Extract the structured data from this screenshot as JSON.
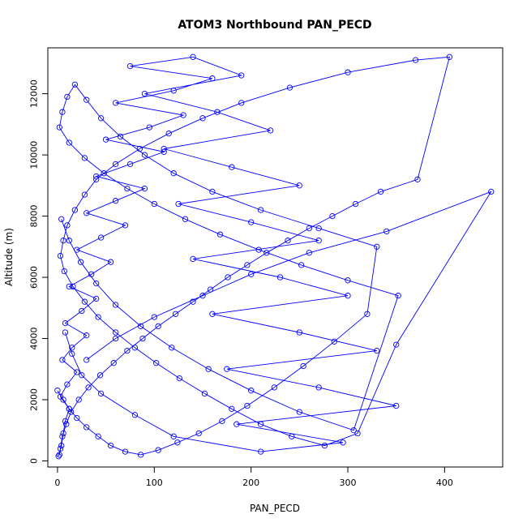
{
  "chart_data": {
    "type": "line",
    "title": "ATOM3 Northbound PAN_PECD",
    "xlabel": "PAN_PECD",
    "ylabel": "Altitude (m)",
    "xlim": [
      -10,
      460
    ],
    "ylim": [
      -200,
      13500
    ],
    "xticks": [
      0,
      100,
      200,
      300,
      400
    ],
    "yticks": [
      0,
      2000,
      4000,
      6000,
      8000,
      10000,
      12000
    ],
    "grid": false,
    "line_color": "#0000ff",
    "marker": "open-circle",
    "series": [
      {
        "x": [
          2,
          4,
          6,
          8,
          12,
          3,
          10,
          20,
          5,
          15,
          30,
          8,
          25,
          40,
          12,
          35,
          55,
          20,
          45,
          70,
          30,
          60,
          90,
          40,
          75,
          110,
          50,
          95,
          130,
          60,
          120,
          160,
          75,
          140,
          190,
          90,
          165,
          220,
          110,
          180,
          250,
          125,
          200,
          270,
          140,
          230,
          300,
          160,
          250,
          330,
          175,
          270,
          350,
          185,
          295,
          210,
          120,
          80,
          45,
          25,
          15,
          8
        ],
        "y": [
          200,
          500,
          900,
          1300,
          1700,
          2100,
          2500,
          2900,
          3300,
          3700,
          4100,
          4500,
          4900,
          5300,
          5700,
          6100,
          6500,
          6900,
          7300,
          7700,
          8100,
          8500,
          8900,
          9300,
          9700,
          10100,
          10500,
          10900,
          11300,
          11700,
          12100,
          12500,
          12900,
          13200,
          12600,
          12000,
          11400,
          10800,
          10200,
          9600,
          9000,
          8400,
          7800,
          7200,
          6600,
          6000,
          5400,
          4800,
          4200,
          3600,
          3000,
          2400,
          1800,
          1200,
          600,
          300,
          800,
          1500,
          2200,
          2800,
          3500,
          4200
        ]
      },
      {
        "x": [
          1,
          3,
          5,
          9,
          14,
          22,
          32,
          44,
          58,
          72,
          88,
          104,
          122,
          140,
          158,
          176,
          196,
          216,
          238,
          260,
          284,
          308,
          334,
          372,
          405,
          370,
          300,
          240,
          190,
          150,
          115,
          85,
          60,
          40,
          28,
          18,
          10,
          6,
          3,
          7,
          16,
          28,
          42,
          60,
          80,
          102,
          126,
          152,
          180,
          210,
          242,
          276,
          310,
          350,
          448,
          340,
          260,
          200,
          150,
          100,
          60,
          30
        ],
        "y": [
          150,
          400,
          800,
          1200,
          1600,
          2000,
          2400,
          2800,
          3200,
          3600,
          4000,
          4400,
          4800,
          5200,
          5600,
          6000,
          6400,
          6800,
          7200,
          7600,
          8000,
          8400,
          8800,
          9200,
          13200,
          13100,
          12700,
          12200,
          11700,
          11200,
          10700,
          10200,
          9700,
          9200,
          8700,
          8200,
          7700,
          7200,
          6700,
          6200,
          5700,
          5200,
          4700,
          4200,
          3700,
          3200,
          2700,
          2200,
          1700,
          1200,
          800,
          500,
          900,
          3800,
          8800,
          7500,
          6800,
          6100,
          5400,
          4700,
          4000,
          3300
        ]
      },
      {
        "x": [
          0,
          6,
          12,
          20,
          30,
          42,
          55,
          70,
          86,
          104,
          124,
          146,
          170,
          196,
          224,
          254,
          286,
          320,
          330,
          270,
          210,
          160,
          120,
          90,
          65,
          45,
          30,
          18,
          10,
          5,
          2,
          12,
          28,
          48,
          72,
          100,
          132,
          168,
          208,
          252,
          300,
          352,
          306,
          250,
          200,
          156,
          118,
          86,
          60,
          40,
          24,
          12,
          4
        ],
        "y": [
          2300,
          2000,
          1700,
          1400,
          1100,
          800,
          500,
          300,
          200,
          350,
          600,
          900,
          1300,
          1800,
          2400,
          3100,
          3900,
          4800,
          7000,
          7600,
          8200,
          8800,
          9400,
          10000,
          10600,
          11200,
          11800,
          12300,
          11900,
          11400,
          10900,
          10400,
          9900,
          9400,
          8900,
          8400,
          7900,
          7400,
          6900,
          6400,
          5900,
          5400,
          1000,
          1600,
          2300,
          3000,
          3700,
          4400,
          5100,
          5800,
          6500,
          7200,
          7900
        ]
      }
    ]
  }
}
